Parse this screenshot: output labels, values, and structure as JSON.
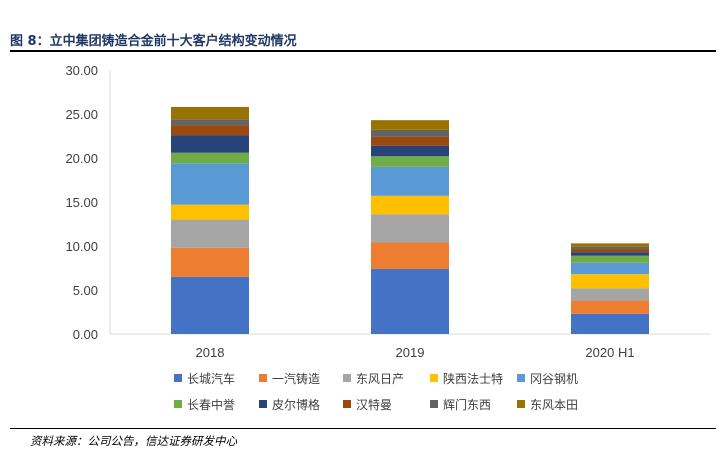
{
  "figure": {
    "title": "图 8：立中集团铸造合金前十大客户结构变动情况",
    "source": "资料来源：公司公告，信达证券研发中心"
  },
  "chart_data": {
    "type": "bar",
    "stacked": true,
    "categories": [
      "2018",
      "2019",
      "2020 H1"
    ],
    "ylim": [
      0,
      30
    ],
    "yticks": [
      "0.00",
      "5.00",
      "10.00",
      "15.00",
      "20.00",
      "25.00",
      "30.00"
    ],
    "grid": false,
    "legend_position": "bottom",
    "series": [
      {
        "name": "长城汽车",
        "color": "#4472c4",
        "values": [
          6.5,
          7.4,
          2.3
        ]
      },
      {
        "name": "一汽铸造",
        "color": "#ed7d31",
        "values": [
          3.3,
          3.0,
          1.5
        ]
      },
      {
        "name": "东风日产",
        "color": "#a5a5a5",
        "values": [
          3.2,
          3.2,
          1.4
        ]
      },
      {
        "name": "陕西法士特",
        "color": "#ffc000",
        "values": [
          1.7,
          2.1,
          1.6
        ]
      },
      {
        "name": "冈谷钢机",
        "color": "#5b9bd5",
        "values": [
          4.7,
          3.3,
          1.3
        ]
      },
      {
        "name": "长春中誉",
        "color": "#70ad47",
        "values": [
          1.2,
          1.2,
          0.8
        ]
      },
      {
        "name": "皮尔博格",
        "color": "#264478",
        "values": [
          2.0,
          1.2,
          0.4
        ]
      },
      {
        "name": "汉特曼",
        "color": "#9e480e",
        "values": [
          1.1,
          1.0,
          0.3
        ]
      },
      {
        "name": "辉门东西",
        "color": "#636363",
        "values": [
          0.7,
          0.8,
          0.3
        ]
      },
      {
        "name": "东风本田",
        "color": "#997300",
        "values": [
          1.4,
          1.1,
          0.4
        ]
      }
    ]
  }
}
